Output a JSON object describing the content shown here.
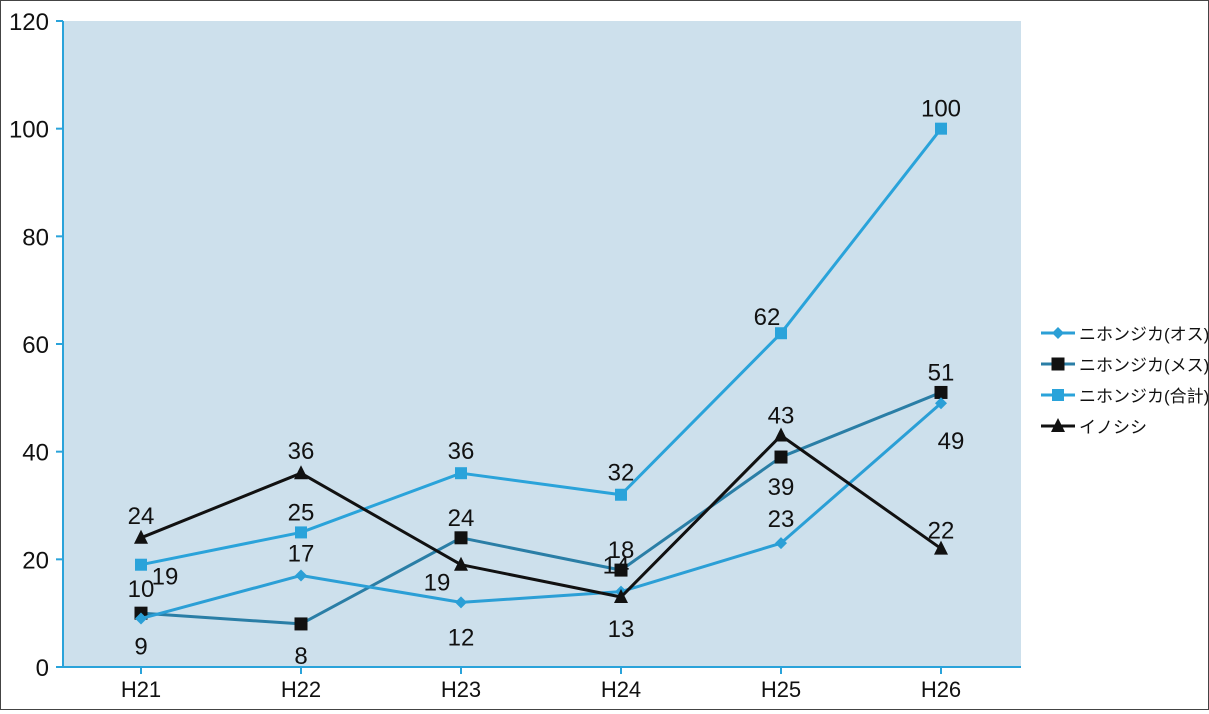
{
  "chart_data": {
    "type": "line",
    "title": "",
    "xlabel": "",
    "ylabel": "",
    "categories": [
      "H21",
      "H22",
      "H23",
      "H24",
      "H25",
      "H26"
    ],
    "ylim": [
      0,
      120
    ],
    "yticks": [
      0,
      20,
      40,
      60,
      80,
      100,
      120
    ],
    "grid": false,
    "legend_position": "right",
    "plot_background": "#cde0ec",
    "series": [
      {
        "name": "ニホンジカ(オス)",
        "values": [
          9,
          17,
          12,
          14,
          23,
          49
        ],
        "color": "#2b9fd6",
        "marker": "diamond"
      },
      {
        "name": "ニホンジカ(メス)",
        "values": [
          10,
          8,
          24,
          18,
          39,
          51
        ],
        "color": "#2a7ea6",
        "marker": "square"
      },
      {
        "name": "ニホンジカ(合計)",
        "values": [
          19,
          25,
          36,
          32,
          62,
          100
        ],
        "color": "#2aa3da",
        "marker": "star"
      },
      {
        "name": "イノシシ",
        "values": [
          24,
          36,
          19,
          13,
          43,
          22
        ],
        "color": "#111111",
        "marker": "triangle"
      }
    ]
  }
}
